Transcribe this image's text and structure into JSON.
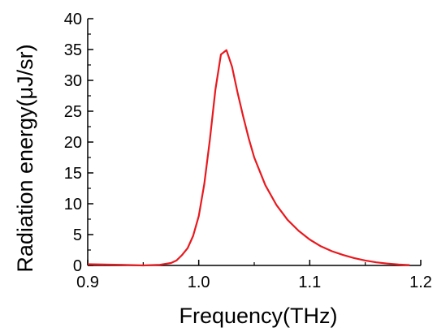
{
  "chart_data": {
    "type": "line",
    "xlabel": "Frequency(THz)",
    "ylabel": "Radiation energy(μJ/sr)",
    "xlim": [
      0.9,
      1.2
    ],
    "ylim": [
      0,
      40
    ],
    "xticks": [
      0.9,
      1.0,
      1.1,
      1.2
    ],
    "xtick_labels": [
      "0.9",
      "1.0",
      "1.1",
      "1.2"
    ],
    "yticks": [
      0,
      5,
      10,
      15,
      20,
      25,
      30,
      35,
      40
    ],
    "ytick_labels": [
      "0",
      "5",
      "10",
      "15",
      "20",
      "25",
      "30",
      "35",
      "40"
    ],
    "grid": false,
    "series": [
      {
        "color": "#e8191e",
        "x": [
          0.9,
          0.93,
          0.95,
          0.965,
          0.975,
          0.98,
          0.985,
          0.99,
          0.995,
          1.0,
          1.005,
          1.01,
          1.015,
          1.02,
          1.025,
          1.03,
          1.035,
          1.04,
          1.045,
          1.05,
          1.06,
          1.07,
          1.08,
          1.09,
          1.1,
          1.11,
          1.12,
          1.13,
          1.14,
          1.15,
          1.16,
          1.17,
          1.18,
          1.19
        ],
        "y": [
          0.2,
          0.1,
          0.0,
          0.1,
          0.4,
          0.8,
          1.7,
          2.8,
          4.8,
          8.0,
          13.2,
          20.3,
          28.5,
          34.2,
          34.9,
          32.2,
          28.0,
          24.2,
          20.6,
          17.5,
          13.0,
          9.8,
          7.4,
          5.6,
          4.2,
          3.1,
          2.3,
          1.7,
          1.2,
          0.8,
          0.5,
          0.3,
          0.15,
          0.05
        ]
      }
    ]
  }
}
